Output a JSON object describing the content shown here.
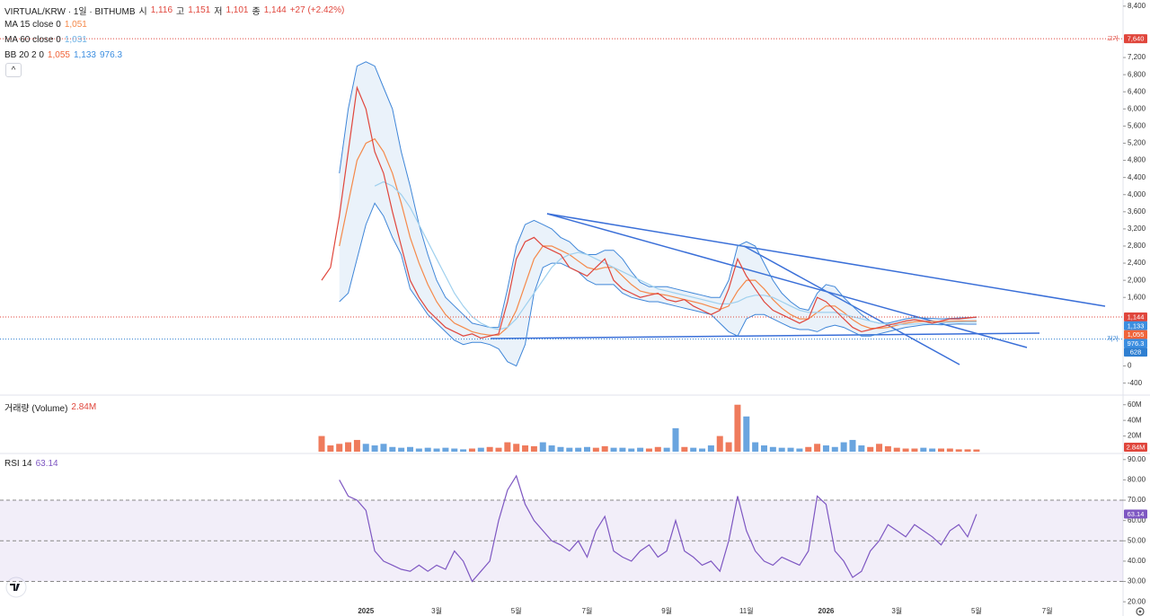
{
  "chart_data": [
    {
      "type": "line",
      "title": "VIRTUAL/KRW · 1일 · BITHUMB",
      "ohlc": [
        {
          "name": "시",
          "value": 1116,
          "label": "1,116"
        },
        {
          "name": "고",
          "value": 1151,
          "label": "1,151"
        },
        {
          "name": "저",
          "value": 1101,
          "label": "1,101"
        },
        {
          "name": "종",
          "value": 1144,
          "label": "1,144"
        }
      ],
      "change": "+27 (+2.42%)",
      "color": "#e0463c",
      "values": [
        2000,
        2300,
        3500,
        5000,
        6500,
        6000,
        5000,
        4500,
        3600,
        2800,
        2000,
        1600,
        1300,
        1100,
        900,
        800,
        700,
        750,
        650,
        700,
        750,
        1500,
        2500,
        2900,
        3000,
        2800,
        2700,
        2600,
        2300,
        2200,
        2100,
        2300,
        2500,
        2000,
        1800,
        1700,
        1600,
        1650,
        1700,
        1550,
        1500,
        1550,
        1400,
        1300,
        1200,
        1300,
        1800,
        2500,
        2100,
        1800,
        1500,
        1300,
        1200,
        1100,
        1000,
        1100,
        1600,
        1500,
        1300,
        1100,
        900,
        800,
        850,
        900,
        950,
        1000,
        1050,
        1080,
        1050,
        1000,
        1050,
        1100,
        1100,
        1120,
        1144,
        null,
        null,
        null,
        null,
        null,
        null,
        null,
        null
      ],
      "series": [
        {
          "name": "MA 15 close 0",
          "color": "#f5894a",
          "last": {
            "value": 1051,
            "label": "1,051"
          },
          "values": [
            null,
            null,
            2800,
            3800,
            4800,
            5200,
            5300,
            5000,
            4500,
            3800,
            3000,
            2400,
            1900,
            1500,
            1200,
            1000,
            900,
            800,
            750,
            720,
            720,
            900,
            1300,
            1900,
            2500,
            2800,
            2800,
            2700,
            2600,
            2450,
            2300,
            2250,
            2300,
            2300,
            2100,
            1900,
            1750,
            1700,
            1680,
            1650,
            1600,
            1550,
            1500,
            1450,
            1380,
            1320,
            1400,
            1750,
            2000,
            2000,
            1800,
            1550,
            1350,
            1200,
            1100,
            1100,
            1250,
            1400,
            1400,
            1250,
            1080,
            950,
            880,
            880,
            900,
            950,
            1000,
            1030,
            1040,
            1040,
            1030,
            1040,
            1050,
            1050,
            1051,
            null,
            null,
            null,
            null,
            null,
            null,
            null,
            null
          ]
        },
        {
          "name": "MA 60 close 0",
          "color": "#9fd0ee",
          "last": {
            "value": 1031,
            "label": "1,031"
          },
          "values": [
            null,
            null,
            null,
            null,
            null,
            null,
            4200,
            4300,
            4200,
            4000,
            3700,
            3300,
            2900,
            2500,
            2100,
            1700,
            1400,
            1150,
            1000,
            900,
            850,
            900,
            1100,
            1400,
            1700,
            2000,
            2300,
            2500,
            2600,
            2650,
            2600,
            2500,
            2400,
            2300,
            2200,
            2100,
            2000,
            1900,
            1800,
            1750,
            1700,
            1650,
            1600,
            1550,
            1500,
            1450,
            1450,
            1500,
            1600,
            1650,
            1650,
            1600,
            1500,
            1400,
            1300,
            1250,
            1250,
            1250,
            1250,
            1200,
            1150,
            1100,
            1050,
            1000,
            980,
            970,
            970,
            980,
            990,
            1000,
            1010,
            1020,
            1025,
            1030,
            1031,
            null,
            null,
            null,
            null,
            null,
            null,
            null,
            null
          ]
        }
      ],
      "bollinger": {
        "name": "BB 20 2 0",
        "color": "#3f86d8",
        "fill": "rgba(91,155,213,0.13)",
        "last": [
          {
            "value": 1055,
            "label": "1,055",
            "color": "#f0643a"
          },
          {
            "value": 1133,
            "label": "1,133",
            "color": "#3c8ee0"
          },
          {
            "value": 976.3,
            "label": "976.3",
            "color": "#3c8ee0"
          }
        ],
        "upper": [
          null,
          null,
          4500,
          6000,
          7000,
          7100,
          7000,
          6500,
          6000,
          5000,
          4200,
          3300,
          2600,
          2000,
          1600,
          1400,
          1200,
          1000,
          950,
          900,
          900,
          1800,
          2800,
          3300,
          3400,
          3300,
          3200,
          3000,
          2900,
          2700,
          2600,
          2600,
          2700,
          2700,
          2500,
          2200,
          1950,
          1850,
          1850,
          1850,
          1800,
          1750,
          1700,
          1650,
          1600,
          1600,
          2000,
          2800,
          2900,
          2800,
          2400,
          2000,
          1700,
          1500,
          1350,
          1300,
          1700,
          1900,
          1850,
          1600,
          1400,
          1200,
          1050,
          1000,
          1000,
          1050,
          1100,
          1130,
          1120,
          1110,
          1100,
          1110,
          1120,
          1130,
          1133,
          null,
          null,
          null,
          null,
          null,
          null,
          null,
          null
        ],
        "lower": [
          null,
          null,
          1500,
          1700,
          2500,
          3300,
          3800,
          3500,
          3000,
          2600,
          1800,
          1500,
          1200,
          1000,
          800,
          600,
          500,
          550,
          550,
          500,
          400,
          100,
          0,
          500,
          1700,
          2300,
          2400,
          2400,
          2300,
          2200,
          2000,
          1900,
          1900,
          1900,
          1700,
          1600,
          1550,
          1500,
          1500,
          1450,
          1400,
          1350,
          1300,
          1250,
          1200,
          1000,
          800,
          700,
          1100,
          1200,
          1200,
          1100,
          1000,
          900,
          850,
          850,
          800,
          900,
          950,
          900,
          800,
          700,
          700,
          750,
          800,
          850,
          900,
          930,
          960,
          970,
          960,
          970,
          980,
          975,
          976.3,
          null,
          null,
          null,
          null,
          null,
          null,
          null,
          null
        ]
      },
      "ylim": [
        -680,
        8480
      ],
      "yticks": [
        {
          "value": 8400,
          "label": "8,400"
        },
        {
          "value": 7200,
          "label": "7,200"
        },
        {
          "value": 6800,
          "label": "6,800"
        },
        {
          "value": 6400,
          "label": "6,400"
        },
        {
          "value": 6000,
          "label": "6,000"
        },
        {
          "value": 5600,
          "label": "5,600"
        },
        {
          "value": 5200,
          "label": "5,200"
        },
        {
          "value": 4800,
          "label": "4,800"
        },
        {
          "value": 4400,
          "label": "4,400"
        },
        {
          "value": 4000,
          "label": "4,000"
        },
        {
          "value": 3600,
          "label": "3,600"
        },
        {
          "value": 3200,
          "label": "3,200"
        },
        {
          "value": 2800,
          "label": "2,800"
        },
        {
          "value": 2400,
          "label": "2,400"
        },
        {
          "value": 2000,
          "label": "2,000"
        },
        {
          "value": 1600,
          "label": "1,600"
        },
        0,
        -400
      ],
      "high": {
        "name": "고가",
        "value": 7640,
        "label": "7,640",
        "color": "#e0463c"
      },
      "low": {
        "name": "저가",
        "value": 628,
        "label": "628",
        "color": "#2f7fd1"
      },
      "last_tag": {
        "value": 1144,
        "label": "1,144",
        "color": "#e0463c"
      }
    },
    {
      "type": "bar",
      "title": "거래량 (Volume)",
      "last": {
        "value": 2.84,
        "label": "2.84M",
        "color": "#e0463c"
      },
      "up_color": "#ef7b5c",
      "down_color": "#6aa5df",
      "values": [
        20,
        8,
        10,
        12,
        15,
        10,
        8,
        10,
        6,
        5,
        6,
        4,
        5,
        4,
        5,
        4,
        3,
        4,
        5,
        6,
        5,
        12,
        10,
        8,
        7,
        12,
        8,
        6,
        5,
        5,
        6,
        5,
        7,
        5,
        5,
        4,
        5,
        4,
        6,
        5,
        30,
        6,
        5,
        4,
        8,
        20,
        12,
        60,
        45,
        12,
        8,
        6,
        5,
        5,
        4,
        6,
        10,
        8,
        6,
        12,
        15,
        8,
        6,
        10,
        7,
        5,
        4,
        4,
        5,
        4,
        4,
        4,
        3,
        3,
        2.84,
        null,
        null,
        null,
        null,
        null,
        null,
        null,
        null
      ],
      "ylim": [
        0,
        70
      ],
      "yticks": [
        {
          "value": 60,
          "label": "60M"
        },
        {
          "value": 40,
          "label": "40M"
        },
        {
          "value": 20,
          "label": "20M"
        }
      ]
    },
    {
      "type": "line",
      "title": "RSI 14",
      "last": {
        "value": 63.14,
        "label": "63.14",
        "color": "#7e57c2"
      },
      "color": "#7e57c2",
      "band": [
        30,
        70
      ],
      "band_fill": "rgba(126,87,194,0.1)",
      "midline": 50,
      "values": [
        null,
        null,
        80,
        72,
        70,
        65,
        45,
        40,
        38,
        36,
        35,
        38,
        35,
        38,
        36,
        45,
        40,
        30,
        35,
        40,
        60,
        75,
        82,
        68,
        60,
        55,
        50,
        48,
        45,
        50,
        42,
        55,
        62,
        45,
        42,
        40,
        45,
        48,
        42,
        45,
        60,
        45,
        42,
        38,
        40,
        35,
        50,
        72,
        55,
        45,
        40,
        38,
        42,
        40,
        38,
        45,
        72,
        68,
        45,
        40,
        32,
        35,
        45,
        50,
        58,
        55,
        52,
        58,
        55,
        52,
        48,
        55,
        58,
        52,
        63.14,
        null,
        null,
        null,
        null,
        null,
        null,
        null,
        null
      ],
      "ylim": [
        13,
        93
      ],
      "yticks": [
        {
          "value": 90,
          "label": "90.00"
        },
        {
          "value": 80,
          "label": "80.00"
        },
        {
          "value": 70,
          "label": "70.00"
        },
        {
          "value": 60,
          "label": "60.00"
        },
        {
          "value": 50,
          "label": "50.00"
        },
        {
          "value": 40,
          "label": "40.00"
        },
        {
          "value": 30,
          "label": "30.00"
        },
        {
          "value": 20,
          "label": "20.00"
        }
      ],
      "categories": [
        null,
        null,
        null,
        null,
        null,
        "2025",
        null,
        null,
        null,
        null,
        null,
        null,
        null,
        "3월",
        null,
        null,
        null,
        null,
        null,
        null,
        null,
        null,
        "5월",
        null,
        null,
        null,
        null,
        null,
        null,
        null,
        "7월",
        null,
        null,
        null,
        null,
        null,
        null,
        null,
        null,
        "9월",
        null,
        null,
        null,
        null,
        null,
        null,
        null,
        null,
        "11월",
        null,
        null,
        null,
        null,
        null,
        null,
        null,
        null,
        "2026",
        null,
        null,
        null,
        null,
        null,
        null,
        null,
        "3월",
        null,
        null,
        null,
        null,
        null,
        null,
        null,
        null,
        "5월",
        null,
        null,
        null,
        null,
        null,
        null,
        null,
        "7월"
      ]
    }
  ]
}
